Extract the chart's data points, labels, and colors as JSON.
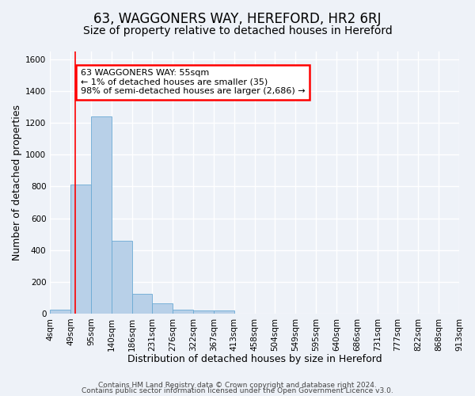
{
  "title": "63, WAGGONERS WAY, HEREFORD, HR2 6RJ",
  "subtitle": "Size of property relative to detached houses in Hereford",
  "xlabel": "Distribution of detached houses by size in Hereford",
  "ylabel": "Number of detached properties",
  "bar_values": [
    25,
    810,
    1240,
    460,
    125,
    65,
    25,
    20,
    20,
    0,
    0,
    0,
    0,
    0,
    0,
    0,
    0,
    0,
    0,
    0
  ],
  "bar_labels": [
    "4sqm",
    "49sqm",
    "95sqm",
    "140sqm",
    "186sqm",
    "231sqm",
    "276sqm",
    "322sqm",
    "367sqm",
    "413sqm",
    "458sqm",
    "504sqm",
    "549sqm",
    "595sqm",
    "640sqm",
    "686sqm",
    "731sqm",
    "777sqm",
    "822sqm",
    "868sqm",
    "913sqm"
  ],
  "bar_color": "#b8d0e8",
  "bar_edge_color": "#6aaad4",
  "bar_width": 1.0,
  "ylim": [
    0,
    1650
  ],
  "yticks": [
    0,
    200,
    400,
    600,
    800,
    1000,
    1200,
    1400,
    1600
  ],
  "red_line_x": 1.24,
  "annotation_box_text": "63 WAGGONERS WAY: 55sqm\n← 1% of detached houses are smaller (35)\n98% of semi-detached houses are larger (2,686) →",
  "footer_line1": "Contains HM Land Registry data © Crown copyright and database right 2024.",
  "footer_line2": "Contains public sector information licensed under the Open Government Licence v3.0.",
  "background_color": "#eef2f8",
  "grid_color": "#ffffff",
  "title_fontsize": 12,
  "subtitle_fontsize": 10,
  "axis_label_fontsize": 9,
  "tick_fontsize": 7.5,
  "footer_fontsize": 6.5
}
